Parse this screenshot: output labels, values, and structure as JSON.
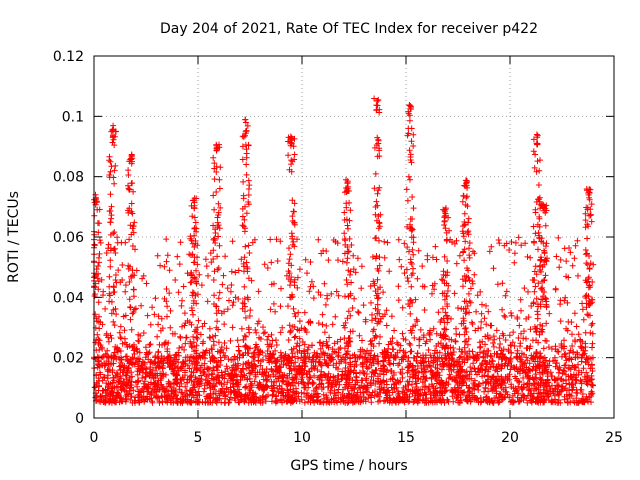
{
  "chart_data": {
    "type": "scatter",
    "title": "Day 204 of 2021, Rate Of TEC Index for receiver p422",
    "xlabel": "GPS time / hours",
    "ylabel": "ROTI / TECUs",
    "xlim": [
      0,
      25
    ],
    "ylim": [
      0,
      0.12
    ],
    "x_ticks": [
      0,
      5,
      10,
      15,
      20,
      25
    ],
    "x_tick_labels": [
      "0",
      "5",
      "10",
      "15",
      "20",
      "25"
    ],
    "y_ticks": [
      0,
      0.02,
      0.04,
      0.06,
      0.08,
      0.1,
      0.12
    ],
    "y_tick_labels": [
      "0",
      "0.02",
      "0.04",
      "0.06",
      "0.08",
      "0.1",
      "0.12"
    ],
    "grid": true,
    "marker": "+",
    "color": "#ff0000",
    "x_data_range": [
      0,
      24
    ],
    "baseline_band": [
      0.005,
      0.02
    ],
    "peaks": [
      {
        "x": 0.1,
        "y": 0.074
      },
      {
        "x": 0.9,
        "y": 0.097
      },
      {
        "x": 1.8,
        "y": 0.088
      },
      {
        "x": 4.8,
        "y": 0.073
      },
      {
        "x": 5.9,
        "y": 0.092
      },
      {
        "x": 7.3,
        "y": 0.099
      },
      {
        "x": 9.5,
        "y": 0.094
      },
      {
        "x": 12.2,
        "y": 0.079
      },
      {
        "x": 13.6,
        "y": 0.106
      },
      {
        "x": 15.2,
        "y": 0.104
      },
      {
        "x": 16.9,
        "y": 0.07
      },
      {
        "x": 17.9,
        "y": 0.079
      },
      {
        "x": 21.3,
        "y": 0.094
      },
      {
        "x": 21.6,
        "y": 0.072
      },
      {
        "x": 23.8,
        "y": 0.076
      }
    ]
  }
}
